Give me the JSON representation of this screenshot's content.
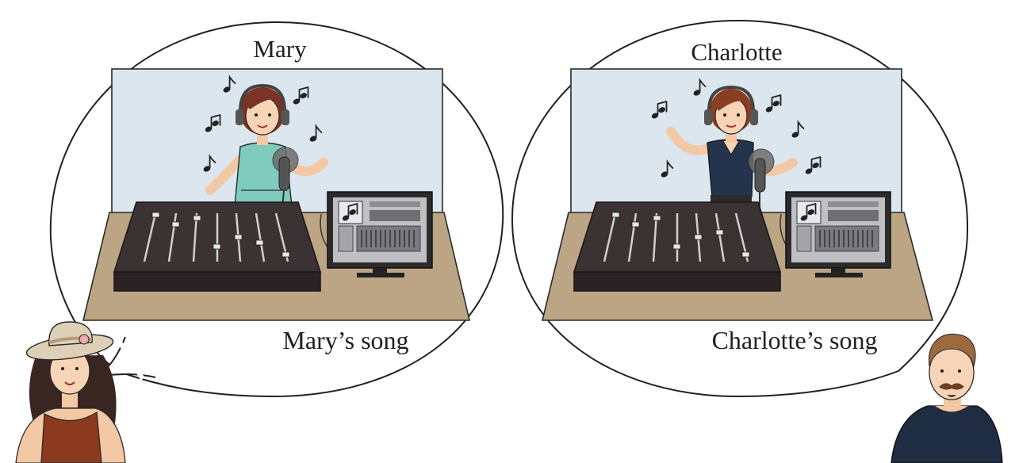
{
  "bubbles": [
    {
      "singer_name": "Mary",
      "song_caption": "Mary’s song",
      "singer_top_color": "#7fcbbd"
    },
    {
      "singer_name": "Charlotte",
      "song_caption": "Charlotte’s song",
      "singer_top_color": "#24344d"
    }
  ],
  "listeners": [
    {
      "icon": "woman-with-sun-hat",
      "shirt_color": "#8b3a1e"
    },
    {
      "icon": "man-with-mustache",
      "shirt_color": "#1f2d42"
    }
  ],
  "colors": {
    "room_wall": "#dce6ee",
    "desk": "#bca584",
    "mixer": "#3b3234",
    "monitor_screen": "#bfbfc4"
  }
}
